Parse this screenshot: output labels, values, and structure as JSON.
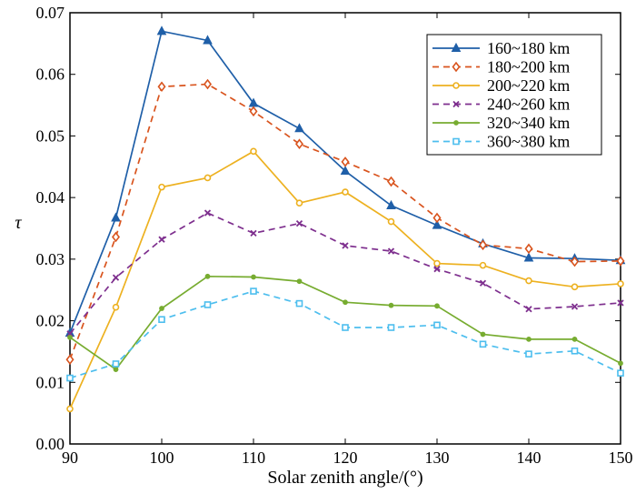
{
  "chart_data": {
    "type": "line",
    "title": "",
    "xlabel": "Solar zenith angle/(°)",
    "ylabel": "τ",
    "xlim": [
      90,
      150
    ],
    "ylim": [
      0.0,
      0.07
    ],
    "x_ticks": [
      "90",
      "100",
      "110",
      "120",
      "130",
      "140",
      "150"
    ],
    "y_ticks": [
      "0.00",
      "0.01",
      "0.02",
      "0.03",
      "0.04",
      "0.05",
      "0.06",
      "0.07"
    ],
    "grid": false,
    "legend_position": "top-right",
    "x": [
      90,
      95,
      100,
      105,
      110,
      115,
      120,
      125,
      130,
      135,
      140,
      145,
      150
    ],
    "series": [
      {
        "name": "160~180 km",
        "color": "#1f5fa8",
        "dash": "solid",
        "marker": "triangle",
        "values": [
          0.018,
          0.0367,
          0.067,
          0.0655,
          0.0553,
          0.0512,
          0.0443,
          0.0387,
          0.0355,
          0.0325,
          0.0302,
          0.0301,
          0.0298
        ]
      },
      {
        "name": "180~200 km",
        "color": "#d9541e",
        "dash": "dashed",
        "marker": "diamond",
        "values": [
          0.0137,
          0.0336,
          0.058,
          0.0584,
          0.054,
          0.0487,
          0.0458,
          0.0426,
          0.0367,
          0.0323,
          0.0317,
          0.0296,
          0.0297
        ]
      },
      {
        "name": "200~220 km",
        "color": "#edb120",
        "dash": "solid",
        "marker": "circle",
        "values": [
          0.0057,
          0.0222,
          0.0417,
          0.0432,
          0.0475,
          0.0391,
          0.0409,
          0.0361,
          0.0293,
          0.029,
          0.0265,
          0.0255,
          0.026
        ]
      },
      {
        "name": "240~260 km",
        "color": "#7e2f8e",
        "dash": "dashed",
        "marker": "x",
        "values": [
          0.0179,
          0.027,
          0.0332,
          0.0375,
          0.0342,
          0.0358,
          0.0322,
          0.0313,
          0.0284,
          0.0261,
          0.0219,
          0.0223,
          0.0229
        ]
      },
      {
        "name": "320~340 km",
        "color": "#77ac30",
        "dash": "solid",
        "marker": "dot",
        "values": [
          0.0173,
          0.0121,
          0.022,
          0.0272,
          0.0271,
          0.0264,
          0.023,
          0.0225,
          0.0224,
          0.0178,
          0.017,
          0.017,
          0.0131
        ]
      },
      {
        "name": "360~380 km",
        "color": "#4dbeee",
        "dash": "dashed",
        "marker": "square",
        "values": [
          0.0107,
          0.013,
          0.0202,
          0.0226,
          0.0248,
          0.0228,
          0.0189,
          0.0189,
          0.0193,
          0.0162,
          0.0146,
          0.0151,
          0.0115
        ]
      }
    ]
  }
}
